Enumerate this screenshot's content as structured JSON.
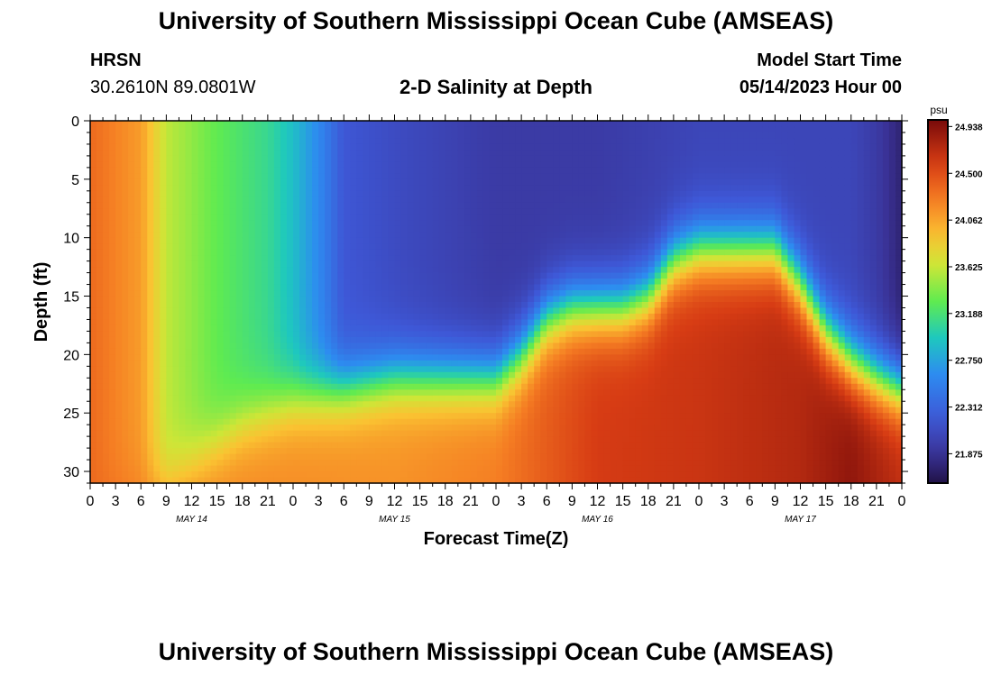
{
  "header": {
    "title_top": "University of Southern Mississippi Ocean Cube (AMSEAS)",
    "station": "HRSN",
    "coords": "30.2610N  89.0801W",
    "subtitle": "2-D Salinity at Depth",
    "model_start_label": "Model Start Time",
    "model_start_value": "05/14/2023 Hour 00",
    "title_bottom": "University of Southern Mississippi Ocean Cube (AMSEAS)"
  },
  "chart_data": {
    "type": "heatmap",
    "title": "2-D Salinity at Depth",
    "xlabel": "Forecast Time(Z)",
    "ylabel": "Depth (ft)",
    "ylim": [
      0,
      31
    ],
    "y_ticks": [
      0,
      5,
      10,
      15,
      20,
      25,
      30
    ],
    "x_ticks": [
      "0",
      "3",
      "6",
      "9",
      "12",
      "15",
      "18",
      "21",
      "0",
      "3",
      "6",
      "9",
      "12",
      "15",
      "18",
      "21",
      "0",
      "3",
      "6",
      "9",
      "12",
      "15",
      "18",
      "21",
      "0",
      "3",
      "6",
      "9",
      "12",
      "15",
      "18",
      "21",
      "0"
    ],
    "x_hours_range": [
      0,
      96
    ],
    "day_labels": [
      {
        "label": "MAY 14",
        "hour": 12
      },
      {
        "label": "MAY 15",
        "hour": 36
      },
      {
        "label": "MAY 16",
        "hour": 60
      },
      {
        "label": "MAY 17",
        "hour": 84
      }
    ],
    "colorbar": {
      "unit": "psu",
      "min": 21.6,
      "max": 25.0,
      "labels": [
        "24.938",
        "24.500",
        "24.062",
        "23.625",
        "23.188",
        "22.750",
        "22.312",
        "21.875"
      ]
    },
    "surface_salinity_psu": [
      {
        "hour": 0,
        "value": 24.35
      },
      {
        "hour": 6,
        "value": 24.1
      },
      {
        "hour": 9,
        "value": 23.6
      },
      {
        "hour": 15,
        "value": 23.3
      },
      {
        "hour": 21,
        "value": 23.1
      },
      {
        "hour": 24,
        "value": 22.9
      },
      {
        "hour": 27,
        "value": 22.6
      },
      {
        "hour": 30,
        "value": 22.2
      },
      {
        "hour": 36,
        "value": 22.1
      },
      {
        "hour": 48,
        "value": 21.95
      },
      {
        "hour": 60,
        "value": 21.95
      },
      {
        "hour": 72,
        "value": 22.05
      },
      {
        "hour": 84,
        "value": 22.05
      },
      {
        "hour": 90,
        "value": 22.05
      },
      {
        "hour": 93,
        "value": 21.95
      },
      {
        "hour": 96,
        "value": 21.75
      }
    ],
    "bottom_salinity_psu": [
      {
        "hour": 0,
        "value": 24.35
      },
      {
        "hour": 12,
        "value": 24.2
      },
      {
        "hour": 36,
        "value": 24.15
      },
      {
        "hour": 48,
        "value": 24.25
      },
      {
        "hour": 60,
        "value": 24.6
      },
      {
        "hour": 72,
        "value": 24.65
      },
      {
        "hour": 84,
        "value": 24.75
      },
      {
        "hour": 90,
        "value": 24.9
      },
      {
        "hour": 96,
        "value": 24.7
      }
    ],
    "halocline_depth_ft": [
      {
        "hour": 0,
        "value": 31
      },
      {
        "hour": 9,
        "value": 31
      },
      {
        "hour": 18,
        "value": 26
      },
      {
        "hour": 24,
        "value": 24
      },
      {
        "hour": 30,
        "value": 23
      },
      {
        "hour": 36,
        "value": 22
      },
      {
        "hour": 42,
        "value": 22
      },
      {
        "hour": 48,
        "value": 22
      },
      {
        "hour": 51,
        "value": 20
      },
      {
        "hour": 54,
        "value": 17
      },
      {
        "hour": 57,
        "value": 16
      },
      {
        "hour": 63,
        "value": 16
      },
      {
        "hour": 66,
        "value": 15
      },
      {
        "hour": 69,
        "value": 12
      },
      {
        "hour": 72,
        "value": 11
      },
      {
        "hour": 81,
        "value": 11
      },
      {
        "hour": 84,
        "value": 14
      },
      {
        "hour": 87,
        "value": 18
      },
      {
        "hour": 90,
        "value": 20.5
      },
      {
        "hour": 93,
        "value": 22
      },
      {
        "hour": 96,
        "value": 23
      }
    ]
  }
}
